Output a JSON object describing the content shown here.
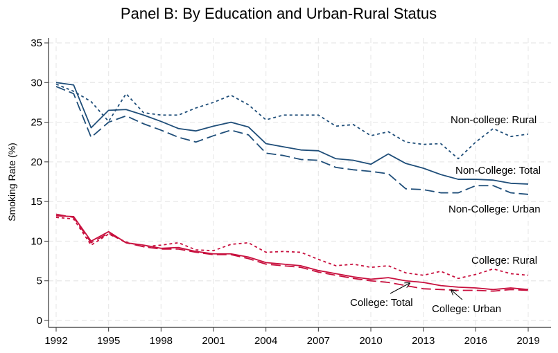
{
  "chart_data": {
    "type": "line",
    "title": "Panel B: By Education and Urban-Rural Status",
    "xlabel": "",
    "ylabel": "Smoking Rate (%)",
    "ylim": [
      0,
      35
    ],
    "xlim": [
      1992,
      2019
    ],
    "grid": true,
    "legend": "none (inline labels)",
    "x": [
      1992,
      1993,
      1994,
      1995,
      1996,
      1997,
      1998,
      1999,
      2000,
      2001,
      2002,
      2003,
      2004,
      2005,
      2006,
      2007,
      2008,
      2009,
      2010,
      2011,
      2012,
      2013,
      2014,
      2015,
      2016,
      2017,
      2018,
      2019
    ],
    "xticks": [
      "1992",
      "1995",
      "1998",
      "2001",
      "2004",
      "2007",
      "2010",
      "2013",
      "2016",
      "2019"
    ],
    "yticks": [
      "0",
      "5",
      "10",
      "15",
      "20",
      "25",
      "30",
      "35"
    ],
    "series": [
      {
        "name": "Non-College: Total",
        "color": "#1f4e79",
        "dash": "solid",
        "values": [
          30.0,
          29.7,
          24.3,
          26.5,
          26.6,
          25.9,
          25.1,
          24.2,
          23.9,
          24.5,
          25.0,
          24.4,
          22.3,
          21.9,
          21.5,
          21.4,
          20.4,
          20.2,
          19.7,
          21.0,
          19.8,
          19.2,
          18.4,
          17.8,
          17.8,
          17.7,
          17.3,
          17.2
        ]
      },
      {
        "name": "Non-College: Urban",
        "color": "#1f4e79",
        "dash": "long",
        "values": [
          29.5,
          28.6,
          23.1,
          25.0,
          25.8,
          24.8,
          24.0,
          23.1,
          22.5,
          23.3,
          24.0,
          23.4,
          21.1,
          20.8,
          20.3,
          20.2,
          19.3,
          19.0,
          18.8,
          18.5,
          16.6,
          16.5,
          16.1,
          16.1,
          17.0,
          17.0,
          16.1,
          15.9
        ]
      },
      {
        "name": "Non-college: Rural",
        "color": "#1f4e79",
        "dash": "short",
        "values": [
          29.8,
          28.9,
          27.6,
          25.1,
          28.6,
          26.2,
          25.9,
          25.9,
          26.8,
          27.5,
          28.4,
          27.2,
          25.3,
          25.9,
          25.9,
          25.9,
          24.5,
          24.7,
          23.3,
          23.8,
          22.5,
          22.2,
          22.3,
          20.4,
          22.5,
          24.2,
          23.2,
          23.5
        ]
      },
      {
        "name": "College: Total",
        "color": "#c8103e",
        "dash": "solid",
        "values": [
          13.2,
          13.1,
          10.0,
          11.2,
          9.8,
          9.5,
          9.1,
          9.2,
          8.7,
          8.4,
          8.4,
          8.0,
          7.3,
          7.1,
          6.9,
          6.3,
          5.9,
          5.5,
          5.2,
          5.4,
          5.0,
          4.8,
          4.4,
          4.2,
          4.1,
          3.9,
          4.1,
          3.9
        ]
      },
      {
        "name": "College: Urban",
        "color": "#c8103e",
        "dash": "long",
        "values": [
          13.4,
          13.0,
          9.8,
          11.0,
          9.8,
          9.3,
          9.0,
          9.0,
          8.6,
          8.3,
          8.3,
          7.8,
          7.1,
          6.9,
          6.7,
          6.1,
          5.7,
          5.3,
          5.0,
          4.8,
          4.4,
          4.0,
          3.9,
          3.8,
          3.8,
          3.7,
          3.9,
          3.8
        ]
      },
      {
        "name": "College: Rural",
        "color": "#c8103e",
        "dash": "short",
        "values": [
          13.0,
          12.8,
          9.5,
          10.9,
          9.9,
          9.3,
          9.5,
          9.8,
          8.9,
          8.8,
          9.6,
          9.8,
          8.6,
          8.7,
          8.6,
          7.7,
          6.9,
          7.1,
          6.7,
          6.9,
          6.0,
          5.7,
          6.2,
          5.3,
          5.8,
          6.5,
          5.9,
          5.7
        ]
      }
    ],
    "annotations": [
      {
        "text": "Non-college: Rural",
        "series": "Non-college: Rural"
      },
      {
        "text": "Non-College: Total",
        "series": "Non-College: Total"
      },
      {
        "text": "Non-College: Urban",
        "series": "Non-College: Urban"
      },
      {
        "text": "College: Rural",
        "series": "College: Rural"
      },
      {
        "text": "College: Total",
        "series": "College: Total",
        "arrow": true
      },
      {
        "text": "College: Urban",
        "series": "College: Urban",
        "arrow": true
      }
    ]
  }
}
